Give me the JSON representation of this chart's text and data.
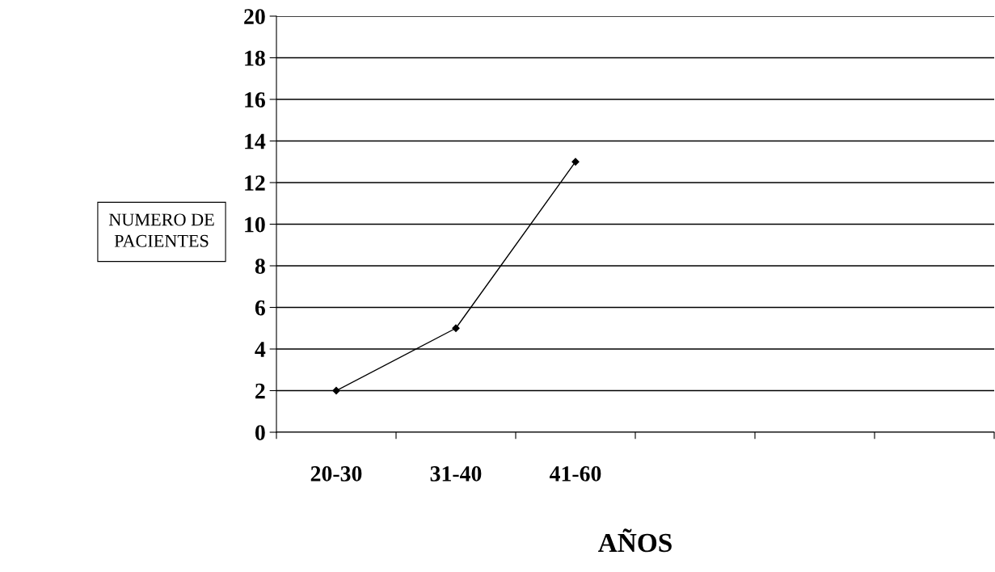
{
  "chart_data": {
    "type": "line",
    "xlabel": "AÑOS",
    "ylabel": "NUMERO DE\nPACIENTES",
    "categories": [
      "20-30",
      "31-40",
      "41-60",
      null,
      null,
      null
    ],
    "series": [
      {
        "color": "#000000",
        "values": [
          2,
          5,
          13,
          null,
          null,
          null
        ]
      }
    ],
    "ylim": [
      0,
      20
    ],
    "yticks": [
      0,
      2,
      4,
      6,
      8,
      10,
      12,
      14,
      16,
      18,
      20
    ],
    "grid": "y",
    "marker": "diamond",
    "line_style": "solid",
    "legend": false
  }
}
